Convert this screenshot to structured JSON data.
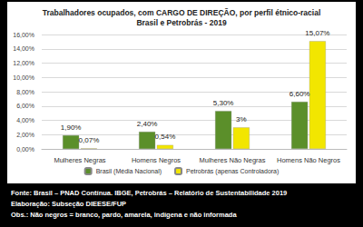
{
  "chart_data": {
    "type": "bar",
    "title": "Trabalhadores ocupados, com CARGO DE DIREÇÃO, por perfil étnico-racial",
    "subtitle": "Brasil e Petrobrás - 2019",
    "categories": [
      "Mulheres Negras",
      "Homens Negros",
      "Mulheres Não Negras",
      "Homens Não Negros"
    ],
    "series": [
      {
        "name": "Brasil (Média Nacional)",
        "color": "#5b8f2a",
        "values": [
          1.9,
          2.4,
          5.3,
          6.6
        ],
        "value_labels": [
          "1,90%",
          "2,40%",
          "5,30%",
          "6,60%"
        ]
      },
      {
        "name": "Petrobrás (apenas Controladora)",
        "color": "#f2e600",
        "values": [
          0.07,
          0.54,
          3,
          15.07
        ],
        "value_labels": [
          "0,07%",
          "0,54%",
          "3%",
          "15,07%"
        ]
      }
    ],
    "ylim": [
      0,
      16
    ],
    "yticks": [
      {
        "value": 0,
        "label": "0,00%"
      },
      {
        "value": 2,
        "label": "2,00%"
      },
      {
        "value": 4,
        "label": "4,00%"
      },
      {
        "value": 6,
        "label": "6,00%"
      },
      {
        "value": 8,
        "label": "8,00%"
      },
      {
        "value": 10,
        "label": "10,00%"
      },
      {
        "value": 12,
        "label": "12,00%"
      },
      {
        "value": 14,
        "label": "14,00%"
      },
      {
        "value": 16,
        "label": "16,00%"
      }
    ],
    "grid": true,
    "legend": "bottom",
    "data_labels": true,
    "annotations": [
      "Fonte: Brasil – PNAD Contínua. IBGE, Petrobrás – Relatório de Sustentabilidade 2019",
      "Elaboração: Subseção DIEESE/FUP",
      "Obs.: Não negros = branco, pardo, amarela, indígena e não informada"
    ]
  }
}
